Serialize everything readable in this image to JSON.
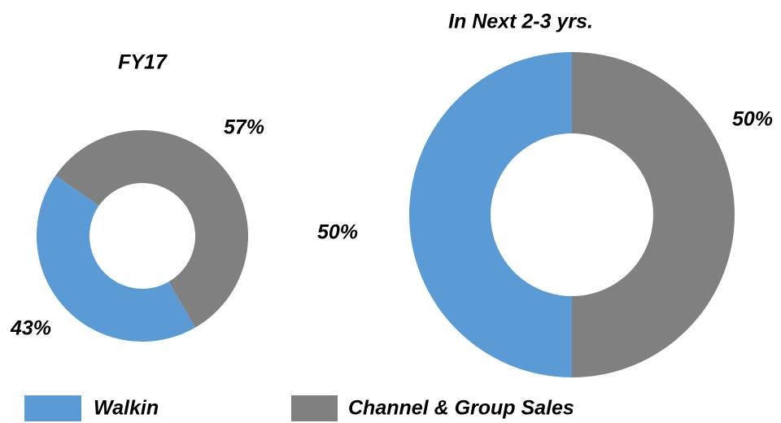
{
  "chart_data": [
    {
      "type": "donut",
      "title": "FY17",
      "values": [
        43,
        57
      ],
      "value_labels": [
        "43%",
        "57%"
      ],
      "colors": [
        "#5b9bd5",
        "#808080"
      ]
    },
    {
      "type": "donut",
      "title": "In Next 2-3 yrs.",
      "values": [
        50,
        50
      ],
      "value_labels": [
        "50%",
        "50%"
      ],
      "colors": [
        "#5b9bd5",
        "#808080"
      ]
    }
  ],
  "legend": {
    "labels": [
      "Walkin",
      "Channel & Group Sales"
    ],
    "colors": [
      "#5b9bd5",
      "#808080"
    ]
  }
}
